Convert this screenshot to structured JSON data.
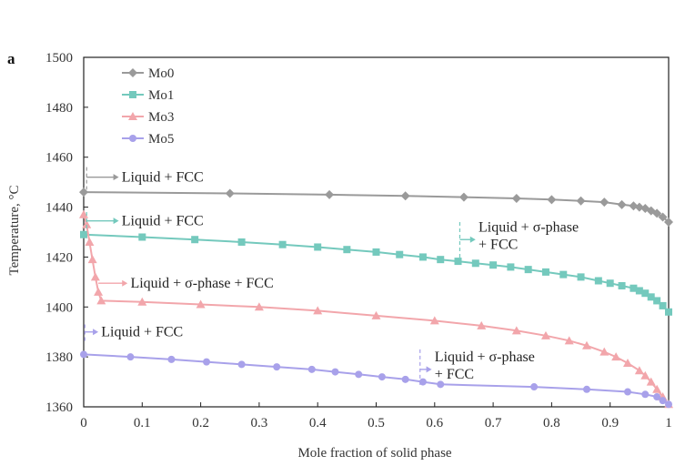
{
  "chart_data": {
    "type": "line",
    "panel_label": "a",
    "xlabel": "Mole fraction of solid phase",
    "ylabel": "Temperature, °C",
    "xlim": [
      0,
      1
    ],
    "ylim": [
      1360,
      1500
    ],
    "x_ticks": [
      "0",
      "0.1",
      "0.2",
      "0.3",
      "0.4",
      "0.5",
      "0.6",
      "0.7",
      "0.8",
      "0.9",
      "1"
    ],
    "y_ticks": [
      "1360",
      "1380",
      "1400",
      "1420",
      "1440",
      "1460",
      "1480",
      "1500"
    ],
    "grid": false,
    "legend_position": "top-left",
    "series": [
      {
        "name": "Mo0",
        "color": "#9a9a9a",
        "marker": "diamond",
        "points": [
          [
            0,
            1446
          ],
          [
            0.25,
            1445.5
          ],
          [
            0.42,
            1445
          ],
          [
            0.55,
            1444.5
          ],
          [
            0.65,
            1444
          ],
          [
            0.74,
            1443.5
          ],
          [
            0.8,
            1443
          ],
          [
            0.85,
            1442.5
          ],
          [
            0.89,
            1442
          ],
          [
            0.92,
            1441
          ],
          [
            0.94,
            1440.5
          ],
          [
            0.95,
            1440
          ],
          [
            0.96,
            1439.5
          ],
          [
            0.97,
            1438.5
          ],
          [
            0.98,
            1437.5
          ],
          [
            0.99,
            1436
          ],
          [
            1.0,
            1434
          ]
        ]
      },
      {
        "name": "Mo1",
        "color": "#74c9bd",
        "marker": "square",
        "points": [
          [
            0,
            1429
          ],
          [
            0.1,
            1428
          ],
          [
            0.19,
            1427
          ],
          [
            0.27,
            1426
          ],
          [
            0.34,
            1425
          ],
          [
            0.4,
            1424
          ],
          [
            0.45,
            1423
          ],
          [
            0.5,
            1422
          ],
          [
            0.54,
            1421
          ],
          [
            0.58,
            1420
          ],
          [
            0.61,
            1419
          ],
          [
            0.64,
            1418.3
          ],
          [
            0.67,
            1417.5
          ],
          [
            0.7,
            1416.8
          ],
          [
            0.73,
            1416
          ],
          [
            0.76,
            1415
          ],
          [
            0.79,
            1414
          ],
          [
            0.82,
            1413
          ],
          [
            0.85,
            1412
          ],
          [
            0.88,
            1410.5
          ],
          [
            0.9,
            1409.5
          ],
          [
            0.92,
            1408.5
          ],
          [
            0.94,
            1407.5
          ],
          [
            0.95,
            1406.5
          ],
          [
            0.96,
            1405.5
          ],
          [
            0.97,
            1404
          ],
          [
            0.98,
            1402.5
          ],
          [
            0.99,
            1400.5
          ],
          [
            1.0,
            1398
          ]
        ]
      },
      {
        "name": "Mo3",
        "color": "#f2a6ab",
        "marker": "triangle",
        "points": [
          [
            0,
            1437
          ],
          [
            0.005,
            1433
          ],
          [
            0.01,
            1426
          ],
          [
            0.015,
            1419
          ],
          [
            0.02,
            1412
          ],
          [
            0.025,
            1406
          ],
          [
            0.03,
            1402.5
          ],
          [
            0.1,
            1402
          ],
          [
            0.2,
            1401
          ],
          [
            0.3,
            1400
          ],
          [
            0.4,
            1398.5
          ],
          [
            0.5,
            1396.5
          ],
          [
            0.6,
            1394.5
          ],
          [
            0.68,
            1392.5
          ],
          [
            0.74,
            1390.5
          ],
          [
            0.79,
            1388.5
          ],
          [
            0.83,
            1386.5
          ],
          [
            0.86,
            1384.5
          ],
          [
            0.89,
            1382
          ],
          [
            0.91,
            1380
          ],
          [
            0.93,
            1377.5
          ],
          [
            0.95,
            1374.5
          ],
          [
            0.96,
            1372.5
          ],
          [
            0.97,
            1370
          ],
          [
            0.98,
            1367
          ],
          [
            0.99,
            1364
          ],
          [
            1.0,
            1361
          ]
        ]
      },
      {
        "name": "Mo5",
        "color": "#a8a1ea",
        "marker": "circle",
        "points": [
          [
            0,
            1381
          ],
          [
            0.08,
            1380
          ],
          [
            0.15,
            1379
          ],
          [
            0.21,
            1378
          ],
          [
            0.27,
            1377
          ],
          [
            0.33,
            1376
          ],
          [
            0.39,
            1375
          ],
          [
            0.43,
            1374
          ],
          [
            0.47,
            1373
          ],
          [
            0.51,
            1372
          ],
          [
            0.55,
            1371
          ],
          [
            0.58,
            1370
          ],
          [
            0.61,
            1369
          ],
          [
            0.77,
            1368
          ],
          [
            0.86,
            1367
          ],
          [
            0.93,
            1366
          ],
          [
            0.96,
            1365
          ],
          [
            0.98,
            1364
          ],
          [
            0.99,
            1362.5
          ],
          [
            1.0,
            1361
          ]
        ]
      }
    ],
    "annotations": [
      {
        "lines": [
          "Liquid + FCC"
        ],
        "color": "#9a9a9a",
        "text_at": [
          0.065,
          1452
        ],
        "arrow_from": [
          0.005,
          1452
        ],
        "arrow_to": [
          0.06,
          1452
        ],
        "stem": [
          [
            0.005,
            1456
          ],
          [
            0.005,
            1447
          ]
        ]
      },
      {
        "lines": [
          "Liquid + FCC"
        ],
        "color": "#74c9bd",
        "text_at": [
          0.065,
          1434.5
        ],
        "arrow_from": [
          0.005,
          1434.5
        ],
        "arrow_to": [
          0.06,
          1434.5
        ],
        "stem": [
          [
            0.005,
            1438
          ],
          [
            0.005,
            1430
          ]
        ]
      },
      {
        "lines": [
          "Liquid + σ-phase + FCC"
        ],
        "color": "#f2a6ab",
        "text_at": [
          0.08,
          1409.5
        ],
        "arrow_from": [
          0.025,
          1409.5
        ],
        "arrow_to": [
          0.075,
          1409.5
        ],
        "stem": []
      },
      {
        "lines": [
          "Liquid + FCC"
        ],
        "color": "#a8a1ea",
        "text_at": [
          0.03,
          1390
        ],
        "arrow_from": [
          0.002,
          1390
        ],
        "arrow_to": [
          0.025,
          1390
        ],
        "stem": [
          [
            0.002,
            1393
          ],
          [
            0.002,
            1386
          ]
        ]
      },
      {
        "lines": [
          "Liquid + σ-phase",
          "+ FCC"
        ],
        "color": "#74c9bd",
        "text_at": [
          0.675,
          1432
        ],
        "arrow_from": [
          0.643,
          1427
        ],
        "arrow_to": [
          0.67,
          1427
        ],
        "stem": [
          [
            0.643,
            1434
          ],
          [
            0.643,
            1419
          ]
        ]
      },
      {
        "lines": [
          "Liquid + σ-phase",
          "+ FCC"
        ],
        "color": "#a8a1ea",
        "text_at": [
          0.6,
          1380
        ],
        "arrow_from": [
          0.575,
          1375
        ],
        "arrow_to": [
          0.595,
          1375
        ],
        "stem": [
          [
            0.575,
            1383
          ],
          [
            0.575,
            1368
          ]
        ]
      }
    ]
  }
}
